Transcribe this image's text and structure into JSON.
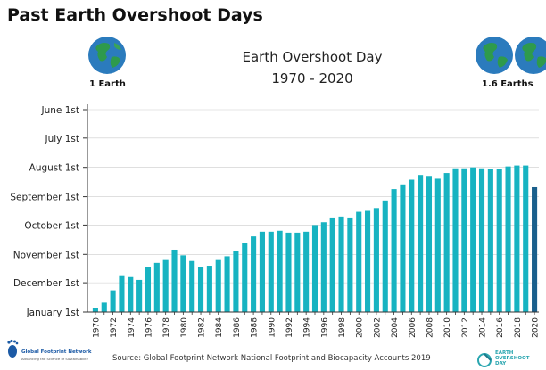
{
  "page": {
    "title": "Past Earth Overshoot Days"
  },
  "legend": {
    "left_label": "1 Earth",
    "right_label": "1.6 Earths",
    "left_globes": "globe-icon",
    "right_globes": "globe-icon"
  },
  "source": "Source: Global Footprint Network National Footprint and Biocapacity Accounts 2019",
  "logos": {
    "gfn_name": "Global Footprint Network",
    "gfn_tagline": "Advancing the Science of Sustainability",
    "eod_text_line1": "EARTH",
    "eod_text_line2": "OVERSHOOT",
    "eod_text_line3": "DAY"
  },
  "colors": {
    "bar": "#17b3c1",
    "bar_last": "#1a5f8c",
    "axis": "#333333",
    "grid": "#cccccc"
  },
  "chart_data": {
    "type": "bar",
    "title": "Earth Overshoot Day",
    "subtitle": "1970 - 2020",
    "xlabel": "",
    "ylabel": "",
    "grid": true,
    "y_axis": {
      "ticks": [
        "June 1st",
        "July 1st",
        "August 1st",
        "September 1st",
        "October 1st",
        "November 1st",
        "December 1st",
        "January 1st"
      ],
      "tick_day_of_year": [
        152,
        182,
        213,
        244,
        274,
        305,
        335,
        366
      ],
      "inverted": true,
      "range": [
        152,
        366
      ]
    },
    "categories": [
      "1970",
      "1971",
      "1972",
      "1973",
      "1974",
      "1975",
      "1976",
      "1977",
      "1978",
      "1979",
      "1980",
      "1981",
      "1982",
      "1983",
      "1984",
      "1985",
      "1986",
      "1987",
      "1988",
      "1989",
      "1990",
      "1991",
      "1992",
      "1993",
      "1994",
      "1995",
      "1996",
      "1997",
      "1998",
      "1999",
      "2000",
      "2001",
      "2002",
      "2003",
      "2004",
      "2005",
      "2006",
      "2007",
      "2008",
      "2009",
      "2010",
      "2011",
      "2012",
      "2013",
      "2014",
      "2015",
      "2016",
      "2017",
      "2018",
      "2019",
      "2020"
    ],
    "x_tick_labels": [
      "1970",
      "1972",
      "1974",
      "1976",
      "1978",
      "1980",
      "1982",
      "1984",
      "1986",
      "1988",
      "1990",
      "1992",
      "1994",
      "1996",
      "1998",
      "2000",
      "2002",
      "2004",
      "2006",
      "2008",
      "2010",
      "2012",
      "2014",
      "2016",
      "2018",
      "2020"
    ],
    "series": [
      {
        "values": [
          362,
          356,
          343,
          328,
          329,
          332,
          318,
          314,
          311,
          300,
          306,
          312,
          318,
          317,
          311,
          307,
          301,
          293,
          286,
          281,
          281,
          280,
          282,
          282,
          281,
          274,
          271,
          266,
          265,
          266,
          260,
          259,
          256,
          248,
          236,
          231,
          226,
          221,
          222,
          225,
          219,
          214,
          214,
          213,
          214,
          215,
          215,
          212,
          211,
          211,
          234
        ]
      }
    ],
    "highlight_last": true
  }
}
